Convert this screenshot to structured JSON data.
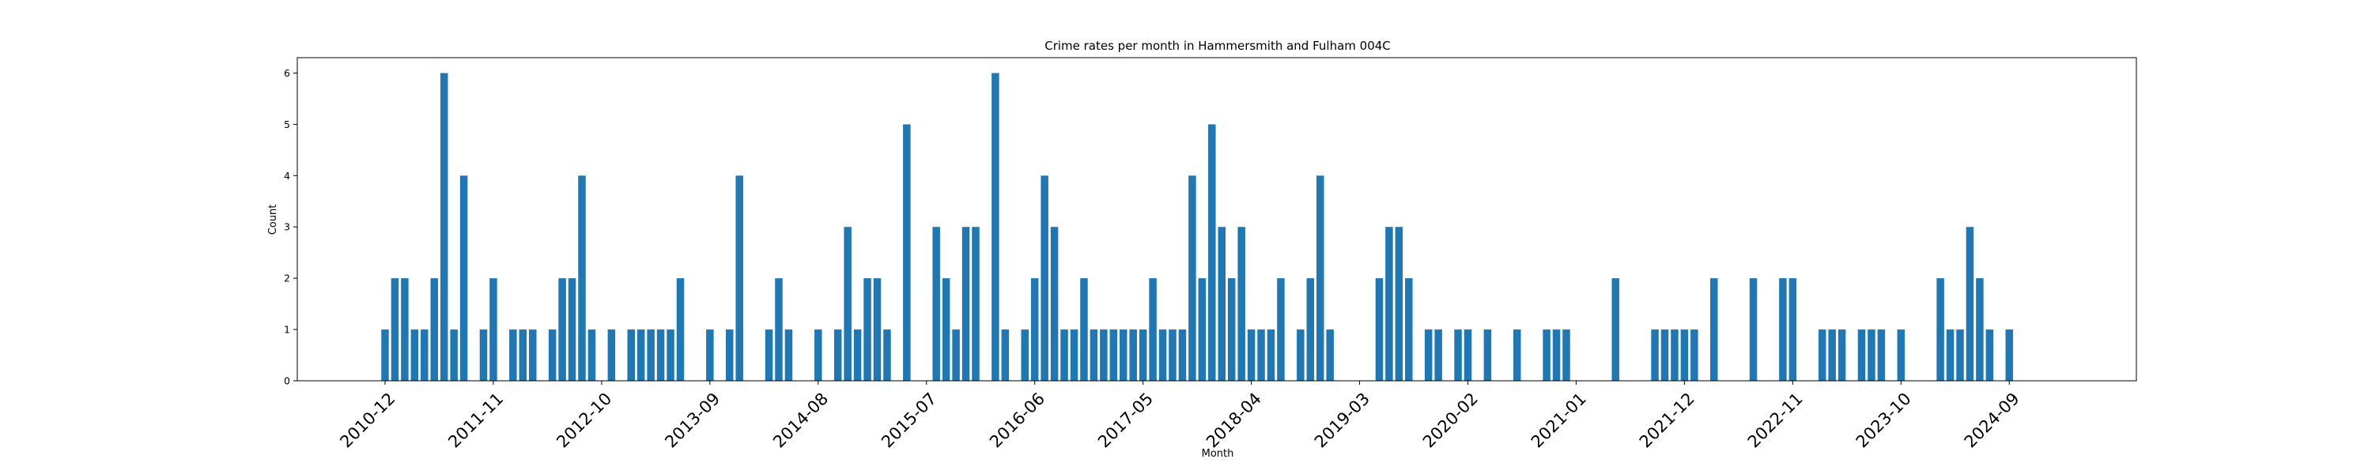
{
  "chart_data": {
    "type": "bar",
    "title": "Crime rates per month in Hammersmith and Fulham 004C",
    "xlabel": "Month",
    "ylabel": "Count",
    "ylim": [
      0,
      6.3
    ],
    "yticks": [
      0,
      1,
      2,
      3,
      4,
      5,
      6
    ],
    "xticks": [
      "2010-12",
      "2011-11",
      "2012-10",
      "2013-09",
      "2014-08",
      "2015-07",
      "2016-06",
      "2017-05",
      "2018-04",
      "2019-03",
      "2020-02",
      "2021-01",
      "2021-12",
      "2022-11",
      "2023-10",
      "2024-09"
    ],
    "color": "#1f77b4",
    "grid": false,
    "series": [
      {
        "x": [
          "2010-12",
          "2011-01",
          "2011-02",
          "2011-03",
          "2011-04",
          "2011-05",
          "2011-06",
          "2011-07",
          "2011-08",
          "2011-10",
          "2011-11",
          "2012-01",
          "2012-02",
          "2012-03",
          "2012-05",
          "2012-06",
          "2012-07",
          "2012-08",
          "2012-09",
          "2012-11",
          "2013-01",
          "2013-02",
          "2013-03",
          "2013-04",
          "2013-05",
          "2013-06",
          "2013-09",
          "2013-11",
          "2013-12",
          "2014-03",
          "2014-04",
          "2014-05",
          "2014-08",
          "2014-10",
          "2014-11",
          "2014-12",
          "2015-01",
          "2015-02",
          "2015-03",
          "2015-05",
          "2015-08",
          "2015-09",
          "2015-10",
          "2015-11",
          "2015-12",
          "2016-02",
          "2016-03",
          "2016-05",
          "2016-06",
          "2016-07",
          "2016-08",
          "2016-09",
          "2016-10",
          "2016-11",
          "2016-12",
          "2017-01",
          "2017-02",
          "2017-03",
          "2017-04",
          "2017-05",
          "2017-06",
          "2017-07",
          "2017-08",
          "2017-09",
          "2017-10",
          "2017-11",
          "2017-12",
          "2018-01",
          "2018-02",
          "2018-03",
          "2018-04",
          "2018-05",
          "2018-06",
          "2018-07",
          "2018-09",
          "2018-10",
          "2018-11",
          "2018-12",
          "2019-05",
          "2019-06",
          "2019-07",
          "2019-08",
          "2019-10",
          "2019-11",
          "2020-01",
          "2020-02",
          "2020-04",
          "2020-07",
          "2020-10",
          "2020-11",
          "2020-12",
          "2021-05",
          "2021-09",
          "2021-10",
          "2021-11",
          "2021-12",
          "2022-01",
          "2022-03",
          "2022-07",
          "2022-10",
          "2022-11",
          "2023-02",
          "2023-03",
          "2023-04",
          "2023-06",
          "2023-07",
          "2023-08",
          "2023-10",
          "2024-02",
          "2024-03",
          "2024-04",
          "2024-05",
          "2024-06",
          "2024-07",
          "2024-09"
        ],
        "values": [
          1,
          2,
          2,
          1,
          1,
          2,
          6,
          1,
          4,
          1,
          2,
          1,
          1,
          1,
          1,
          2,
          2,
          4,
          1,
          1,
          1,
          1,
          1,
          1,
          1,
          2,
          1,
          1,
          4,
          1,
          2,
          1,
          1,
          1,
          3,
          1,
          2,
          2,
          1,
          5,
          3,
          2,
          1,
          3,
          3,
          6,
          1,
          1,
          2,
          4,
          3,
          1,
          1,
          2,
          1,
          1,
          1,
          1,
          1,
          1,
          2,
          1,
          1,
          1,
          4,
          2,
          5,
          3,
          2,
          3,
          1,
          1,
          1,
          2,
          1,
          2,
          4,
          1,
          2,
          3,
          3,
          2,
          1,
          1,
          1,
          1,
          1,
          1,
          1,
          1,
          1,
          2,
          1,
          1,
          1,
          1,
          1,
          2,
          2,
          2,
          2,
          1,
          1,
          1,
          1,
          1,
          1,
          1,
          2,
          1,
          1,
          3,
          2,
          1,
          1
        ]
      }
    ]
  }
}
